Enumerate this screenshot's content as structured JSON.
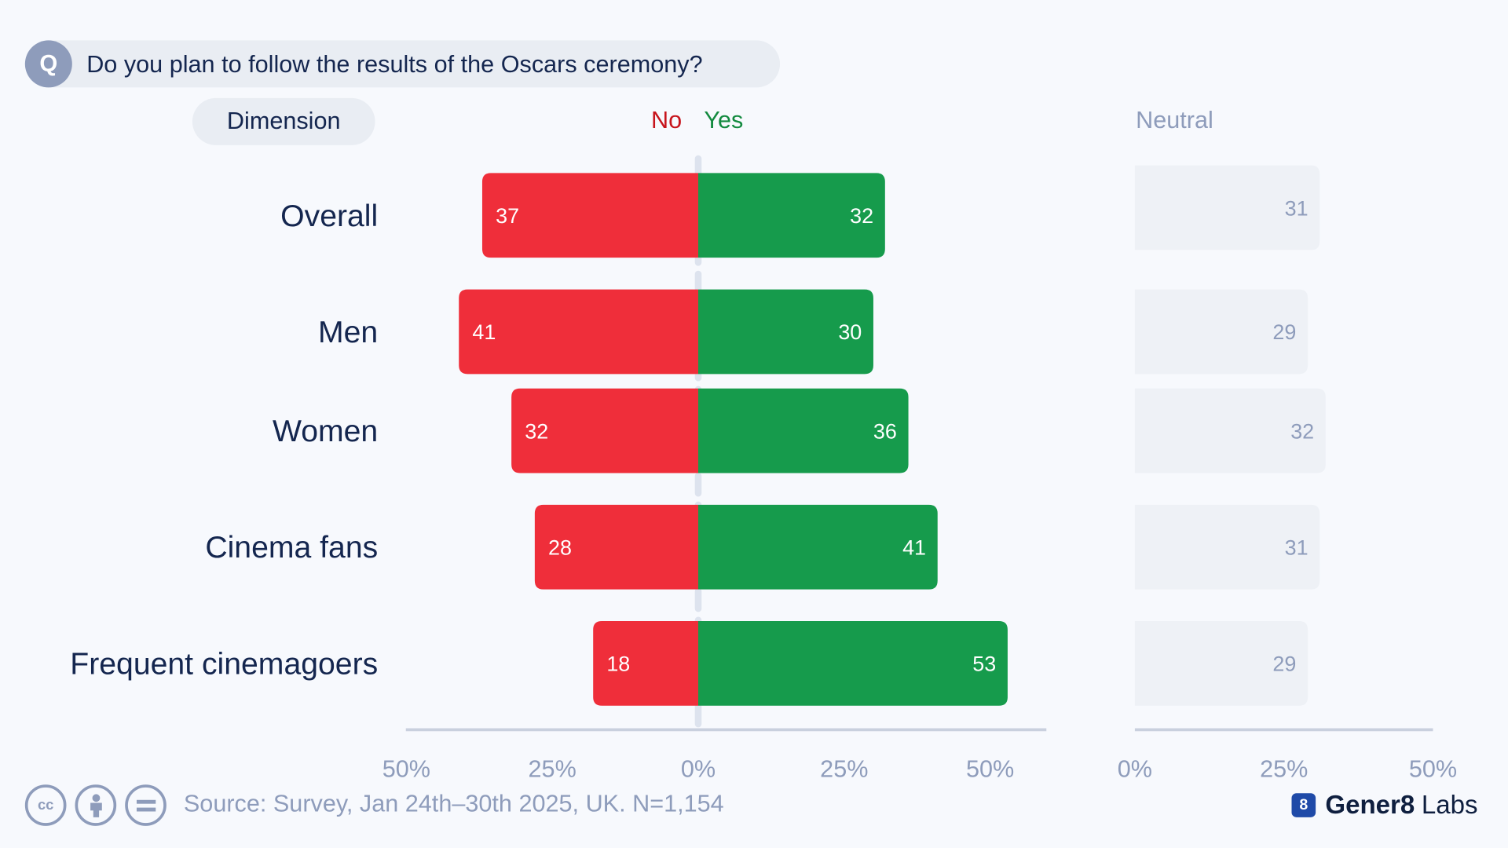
{
  "question": {
    "badge": "Q",
    "text": "Do you plan to follow the results of the Oscars ceremony?"
  },
  "dimension_label": "Dimension",
  "legend": {
    "no": "No",
    "yes": "Yes",
    "neutral": "Neutral"
  },
  "colors": {
    "no": "#ef2e3a",
    "yes": "#169b4c",
    "neutral_bar": "#eef1f6",
    "neutral_text": "#8e9cbb",
    "row_label": "#14264f",
    "axis": "#c9d0de",
    "tick": "#8e9cbb"
  },
  "chart_data": {
    "type": "bar",
    "orientation": "horizontal",
    "diverging": true,
    "categories": [
      "Overall",
      "Men",
      "Women",
      "Cinema fans",
      "Frequent cinemagoers"
    ],
    "series": [
      {
        "name": "No",
        "values": [
          37,
          41,
          32,
          28,
          18
        ]
      },
      {
        "name": "Yes",
        "values": [
          32,
          30,
          36,
          41,
          53
        ]
      },
      {
        "name": "Neutral",
        "values": [
          31,
          29,
          32,
          31,
          29
        ]
      }
    ],
    "main_axis": {
      "range": [
        -50,
        50
      ],
      "ticks": [
        "50%",
        "25%",
        "0%",
        "25%",
        "50%"
      ]
    },
    "neutral_axis": {
      "range": [
        0,
        50
      ],
      "ticks": [
        "0%",
        "25%",
        "50%"
      ]
    },
    "legend_position": "top"
  },
  "footer": {
    "source": "Source: Survey, Jan 24th–30th 2025, UK. N=1,154",
    "license_icons": [
      "cc-icon",
      "by-icon",
      "nd-icon"
    ],
    "brand_mark": "8",
    "brand_bold": "Gener8",
    "brand_light": "Labs"
  }
}
